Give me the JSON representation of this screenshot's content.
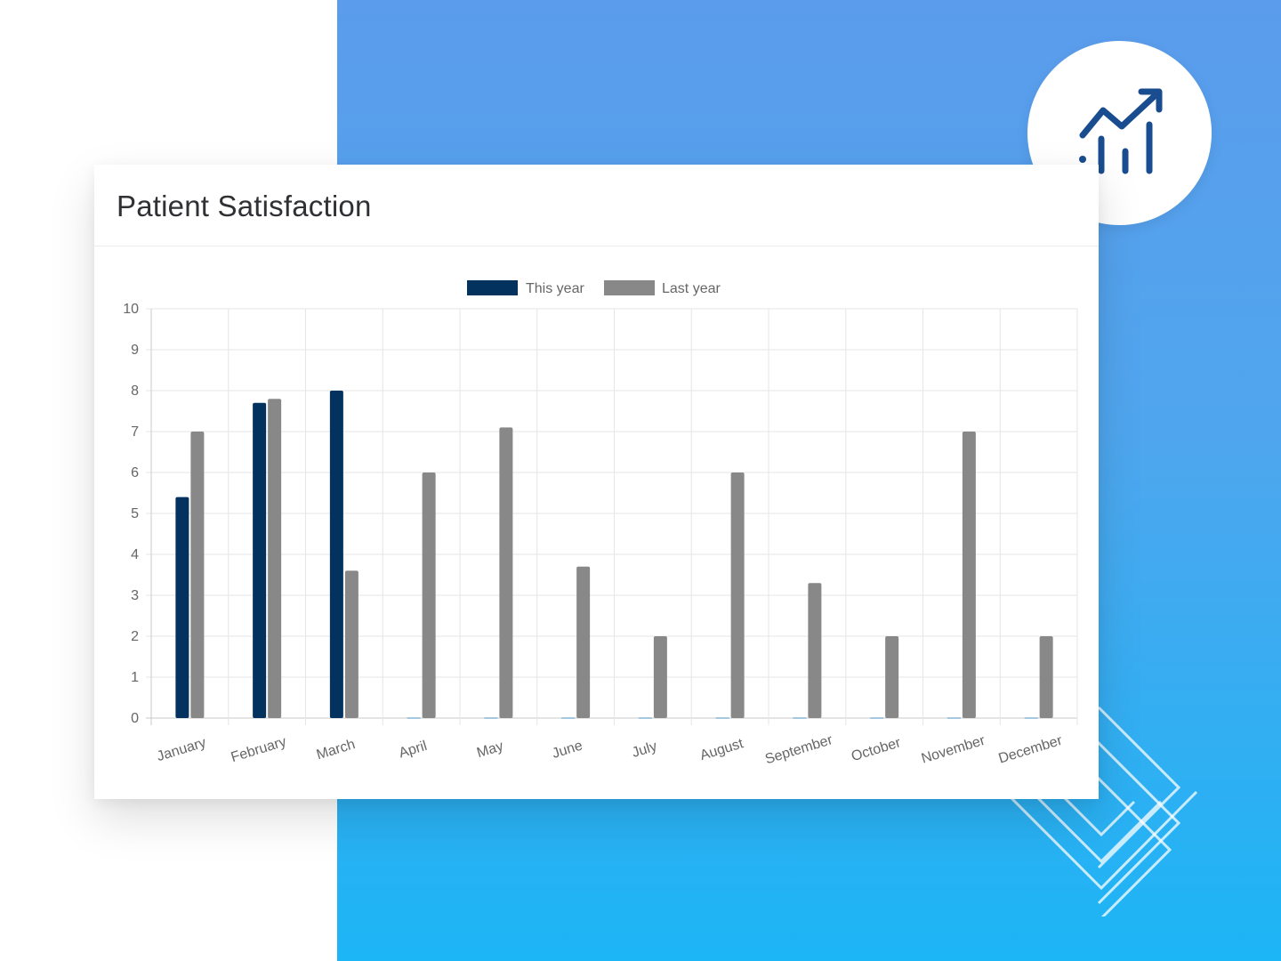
{
  "card": {
    "title": "Patient Satisfaction"
  },
  "icons": {
    "badge": "chart-growth-icon"
  },
  "colors": {
    "this_year": "#04325e",
    "last_year": "#888888",
    "icon": "#1a4d8f"
  },
  "chart_data": {
    "type": "bar",
    "categories": [
      "January",
      "February",
      "March",
      "April",
      "May",
      "June",
      "July",
      "August",
      "September",
      "October",
      "November",
      "December"
    ],
    "series": [
      {
        "name": "This year",
        "values": [
          5.4,
          7.7,
          8,
          0,
          0,
          0,
          0,
          0,
          0,
          0,
          0,
          0
        ]
      },
      {
        "name": "Last year",
        "values": [
          7,
          7.8,
          3.6,
          6,
          7.1,
          3.7,
          2,
          6,
          3.3,
          2,
          7,
          2
        ]
      }
    ],
    "title": "",
    "xlabel": "",
    "ylabel": "",
    "ylim": [
      0,
      10
    ],
    "yticks": [
      0,
      1,
      2,
      3,
      4,
      5,
      6,
      7,
      8,
      9,
      10
    ],
    "grid": true,
    "legend_position": "top"
  }
}
